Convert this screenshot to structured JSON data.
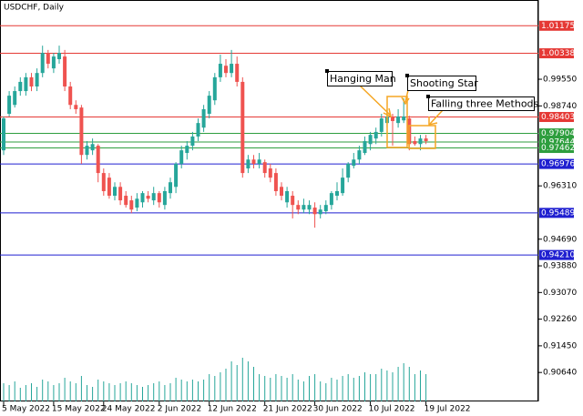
{
  "chart_data": {
    "type": "candlestick",
    "title": "USDCHF, Daily",
    "categories": [
      "5 May 2022",
      null,
      null,
      null,
      null,
      null,
      null,
      null,
      null,
      "15 May 2022",
      null,
      null,
      null,
      null,
      null,
      null,
      null,
      null,
      "24 May 2022",
      null,
      null,
      null,
      null,
      null,
      null,
      null,
      null,
      null,
      "2 Jun 2022",
      null,
      null,
      null,
      null,
      null,
      null,
      null,
      null,
      "12 Jun 2022",
      null,
      null,
      null,
      null,
      null,
      null,
      null,
      null,
      null,
      "21 Jun 2022",
      null,
      null,
      null,
      null,
      null,
      null,
      null,
      null,
      "30 Jun 2022",
      null,
      null,
      null,
      null,
      null,
      null,
      null,
      null,
      null,
      "10 Jul 2022",
      null,
      null,
      null,
      null,
      null,
      null,
      null,
      null,
      null,
      "19 Jul 2022"
    ],
    "open": [
      0.9739,
      0.985,
      0.9877,
      0.9919,
      0.9919,
      0.9961,
      0.9933,
      0.9974,
      1.0035,
      0.9988,
      1.0016,
      1.0024,
      0.9933,
      0.9877,
      0.9869,
      0.9725,
      0.9739,
      0.9753,
      0.967,
      0.9656,
      0.9601,
      0.9628,
      0.9601,
      0.9587,
      0.9565,
      0.9581,
      0.9601,
      0.9587,
      0.9609,
      0.9573,
      0.9609,
      0.9628,
      0.9698,
      0.9731,
      0.9753,
      0.9781,
      0.9808,
      0.985,
      0.9891,
      0.9961,
      0.9996,
      0.9974,
      1.0002,
      0.9947,
      0.9684,
      0.9711,
      0.9698,
      0.9703,
      0.9684,
      0.967,
      0.9628,
      0.9581,
      0.9601,
      0.9573,
      0.9559,
      0.9559,
      0.9565,
      0.9545,
      0.9554,
      0.9573,
      0.9601,
      0.9609,
      0.9656,
      0.9692,
      0.9711,
      0.9731,
      0.9758,
      0.9775,
      0.9795,
      0.9822,
      0.9842,
      0.9822,
      0.983,
      0.9836,
      0.9767,
      0.9758,
      0.9775
    ],
    "high": [
      0.9842,
      0.9919,
      0.9933,
      0.9961,
      0.9974,
      0.9974,
      0.9988,
      1.0057,
      1.0044,
      1.0035,
      1.0057,
      1.0044,
      0.9947,
      0.9891,
      0.9877,
      0.9767,
      0.9775,
      0.9758,
      0.9684,
      0.967,
      0.9642,
      0.9642,
      0.9615,
      0.9601,
      0.9609,
      0.9615,
      0.9615,
      0.9628,
      0.9615,
      0.9628,
      0.9656,
      0.9703,
      0.9753,
      0.9767,
      0.9795,
      0.9836,
      0.9877,
      0.9919,
      0.9974,
      1.003,
      1.0016,
      1.0044,
      1.0024,
      0.9961,
      0.9725,
      0.9725,
      0.9731,
      0.9711,
      0.9698,
      0.9684,
      0.9642,
      0.9628,
      0.9615,
      0.9587,
      0.9592,
      0.9587,
      0.9581,
      0.9573,
      0.9587,
      0.9615,
      0.9642,
      0.9684,
      0.9703,
      0.9731,
      0.9753,
      0.9781,
      0.9795,
      0.9808,
      0.985,
      0.9864,
      0.985,
      0.9864,
      0.9897,
      0.9844,
      0.9781,
      0.9786,
      0.9786
    ],
    "low": [
      0.9725,
      0.9842,
      0.9869,
      0.9905,
      0.9905,
      0.9919,
      0.9919,
      0.9961,
      0.9988,
      0.9974,
      1.0002,
      0.9919,
      0.9864,
      0.985,
      0.9698,
      0.9711,
      0.9725,
      0.9642,
      0.9601,
      0.9592,
      0.9587,
      0.9573,
      0.9565,
      0.9548,
      0.9554,
      0.9565,
      0.9581,
      0.9573,
      0.9565,
      0.9559,
      0.9592,
      0.9609,
      0.9684,
      0.9711,
      0.9739,
      0.9767,
      0.9795,
      0.9836,
      0.9877,
      0.9947,
      0.9961,
      0.9961,
      0.9933,
      0.9656,
      0.967,
      0.9684,
      0.9684,
      0.9656,
      0.9642,
      0.9601,
      0.9587,
      0.9565,
      0.9532,
      0.9545,
      0.9548,
      0.9545,
      0.9504,
      0.9532,
      0.9545,
      0.9559,
      0.9587,
      0.9601,
      0.9642,
      0.9684,
      0.9698,
      0.9725,
      0.9739,
      0.9758,
      0.9781,
      0.9808,
      0.9753,
      0.9808,
      0.9822,
      0.9739,
      0.9753,
      0.9739,
      0.9758
    ],
    "close": [
      0.9836,
      0.9905,
      0.9919,
      0.9947,
      0.9961,
      0.9933,
      0.9974,
      1.0035,
      1.0002,
      1.0024,
      1.0035,
      0.9933,
      0.9877,
      0.9864,
      0.9725,
      0.9753,
      0.9758,
      0.967,
      0.9615,
      0.9601,
      0.9628,
      0.9587,
      0.9573,
      0.9559,
      0.9592,
      0.9609,
      0.9592,
      0.9609,
      0.9581,
      0.9615,
      0.9642,
      0.9698,
      0.9739,
      0.9753,
      0.9781,
      0.9822,
      0.9864,
      0.9905,
      0.9961,
      1.0002,
      0.9974,
      1.0002,
      0.9947,
      0.967,
      0.9711,
      0.9698,
      0.9711,
      0.967,
      0.9656,
      0.9615,
      0.9601,
      0.9615,
      0.9573,
      0.9559,
      0.9573,
      0.9573,
      0.9545,
      0.9559,
      0.9573,
      0.9609,
      0.9615,
      0.9656,
      0.9698,
      0.9711,
      0.9739,
      0.9767,
      0.9786,
      0.9795,
      0.9836,
      0.9842,
      0.9828,
      0.9842,
      0.9842,
      0.9758,
      0.9758,
      0.9775,
      0.9767
    ],
    "up_color": "#26a69a",
    "down_color": "#ef5350",
    "volumes": [
      20,
      18,
      22,
      15,
      18,
      20,
      16,
      24,
      22,
      18,
      20,
      26,
      22,
      20,
      28,
      18,
      16,
      24,
      22,
      20,
      18,
      20,
      22,
      20,
      18,
      16,
      18,
      20,
      22,
      18,
      20,
      26,
      24,
      22,
      24,
      22,
      24,
      30,
      28,
      32,
      36,
      44,
      40,
      48,
      44,
      38,
      30,
      28,
      26,
      30,
      28,
      26,
      30,
      24,
      22,
      28,
      30,
      22,
      20,
      26,
      24,
      28,
      30,
      26,
      28,
      32,
      30,
      30,
      36,
      34,
      32,
      38,
      42,
      38,
      30,
      34,
      30
    ],
    "volume_color": "#26a69a",
    "volume_lim": [
      0,
      100
    ],
    "ylim": [
      0.8976,
      1.0193
    ],
    "yticks": [
      {
        "value": 0.9955,
        "label": "0.99550"
      },
      {
        "value": 0.9874,
        "label": "0.98740"
      },
      {
        "value": 0.9631,
        "label": "0.96310"
      },
      {
        "value": 0.9469,
        "label": "0.94690"
      },
      {
        "value": 0.9388,
        "label": "0.93880"
      },
      {
        "value": 0.9307,
        "label": "0.93070"
      },
      {
        "value": 0.9226,
        "label": "0.92260"
      },
      {
        "value": 0.9145,
        "label": "0.91450"
      },
      {
        "value": 0.9064,
        "label": "0.90640"
      }
    ],
    "levels": [
      {
        "value": 1.01175,
        "color": "#e53935"
      },
      {
        "value": 1.00338,
        "color": "#e53935"
      },
      {
        "value": 0.98403,
        "color": "#e53935"
      },
      {
        "value": 0.97904,
        "color": "#2e9e3e"
      },
      {
        "value": 0.97644,
        "color": "#2e9e3e"
      },
      {
        "value": 0.97462,
        "color": "#2e9e3e"
      },
      {
        "value": 0.96976,
        "color": "#1f1fd0"
      },
      {
        "value": 0.95489,
        "color": "#1f1fd0"
      },
      {
        "value": 0.9421,
        "label": "0.94210",
        "color": "#1f1fd0"
      }
    ],
    "annotations": [
      "Hanging Man",
      "Shooting Star",
      "Falling three Methods"
    ]
  }
}
